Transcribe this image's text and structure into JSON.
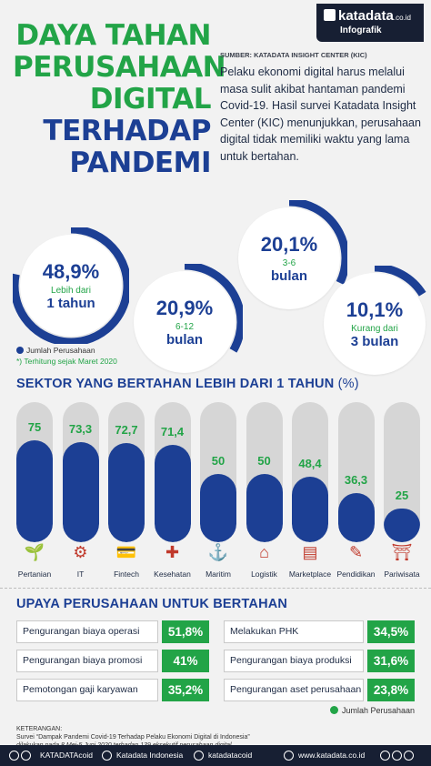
{
  "brand": {
    "name": "katadata",
    "domain": ".co.id",
    "tag": "Infografik"
  },
  "title_lines": [
    {
      "text": "DAYA TAHAN",
      "color": "green"
    },
    {
      "text": "PERUSAHAAN",
      "color": "green"
    },
    {
      "text": "DIGITAL",
      "color": "green"
    },
    {
      "text": "TERHADAP",
      "color": "blue"
    },
    {
      "text": "PANDEMI",
      "color": "blue"
    }
  ],
  "source": "SUMBER: KATADATA INSIGHT CENTER (KIC)",
  "intro": "Pelaku ekonomi digital harus melalui masa sulit akibat hantaman pandemi Covid-19. Hasil survei Katadata Insight Center (KIC) menunjukkan, perusahaan digital tidak memiliki waktu yang lama untuk bertahan.",
  "survival": [
    {
      "value": "48,9%",
      "pct": 48.9,
      "label": "Lebih dari",
      "duration": "1 tahun"
    },
    {
      "value": "20,9%",
      "pct": 20.9,
      "label": "6-12",
      "duration": "bulan"
    },
    {
      "value": "20,1%",
      "pct": 20.1,
      "label": "3-6",
      "duration": "bulan"
    },
    {
      "value": "10,1%",
      "pct": 10.1,
      "label": "Kurang dari",
      "duration": "3 bulan"
    }
  ],
  "legend_survival": "Jumlah Perusahaan",
  "note_survival": "*) Terhitung sejak Maret 2020",
  "sector_heading": "SEKTOR YANG BERTAHAN LEBIH DARI 1 TAHUN",
  "sector_unit": "(%)",
  "chart_data": {
    "type": "bar",
    "title": "SEKTOR YANG BERTAHAN LEBIH DARI 1 TAHUN (%)",
    "categories": [
      "Pertanian",
      "IT",
      "Fintech",
      "Kesehatan",
      "Maritim",
      "Logistik",
      "Marketplace",
      "Pendidikan",
      "Pariwisata"
    ],
    "values": [
      75,
      73.3,
      72.7,
      71.4,
      50,
      50,
      48.4,
      36.3,
      25
    ],
    "labels": [
      "75",
      "73,3",
      "72,7",
      "71,4",
      "50",
      "50",
      "48,4",
      "36,3",
      "25"
    ],
    "ylim": [
      0,
      100
    ],
    "grid": false,
    "colors": {
      "bar": "#1c3f94",
      "track": "#d6d6d6",
      "label": "#22a447"
    }
  },
  "sector_icons": [
    "plant-icon",
    "network-icon",
    "fintech-icon",
    "medical-kit-icon",
    "ship-icon",
    "warehouse-icon",
    "storefront-icon",
    "teacher-icon",
    "temple-icon"
  ],
  "upaya_heading": "UPAYA PERUSAHAAN UNTUK BERTAHAN",
  "upaya": {
    "left": [
      {
        "label": "Pengurangan biaya operasi",
        "value": "51,8%"
      },
      {
        "label": "Pengurangan biaya promosi",
        "value": "41%"
      },
      {
        "label": "Pemotongan gaji karyawan",
        "value": "35,2%"
      }
    ],
    "right": [
      {
        "label": "Melakukan PHK",
        "value": "34,5%"
      },
      {
        "label": "Pengurangan biaya produksi",
        "value": "31,6%"
      },
      {
        "label": "Pengurangan aset perusahaan",
        "value": "23,8%"
      }
    ]
  },
  "legend_upaya": "Jumlah Perusahaan",
  "keterangan": {
    "heading": "KETERANGAN:",
    "line1": "Survei “Dampak Pandemi Covid-19 Terhadap Pelaku Ekonomi Digital di Indonesia”",
    "line2": "dilakukan pada 8 Mei-5 Juni 2020 terhadap 139 eksekutif perusahaan digital"
  },
  "footer": {
    "handle1": "KATADATAcoid",
    "handle2": "Katadata Indonesia",
    "handle3": "katadatacoid",
    "website": "www.katadata.co.id"
  },
  "colors": {
    "green": "#22a447",
    "blue": "#1c3f94",
    "dark": "#171f33"
  }
}
